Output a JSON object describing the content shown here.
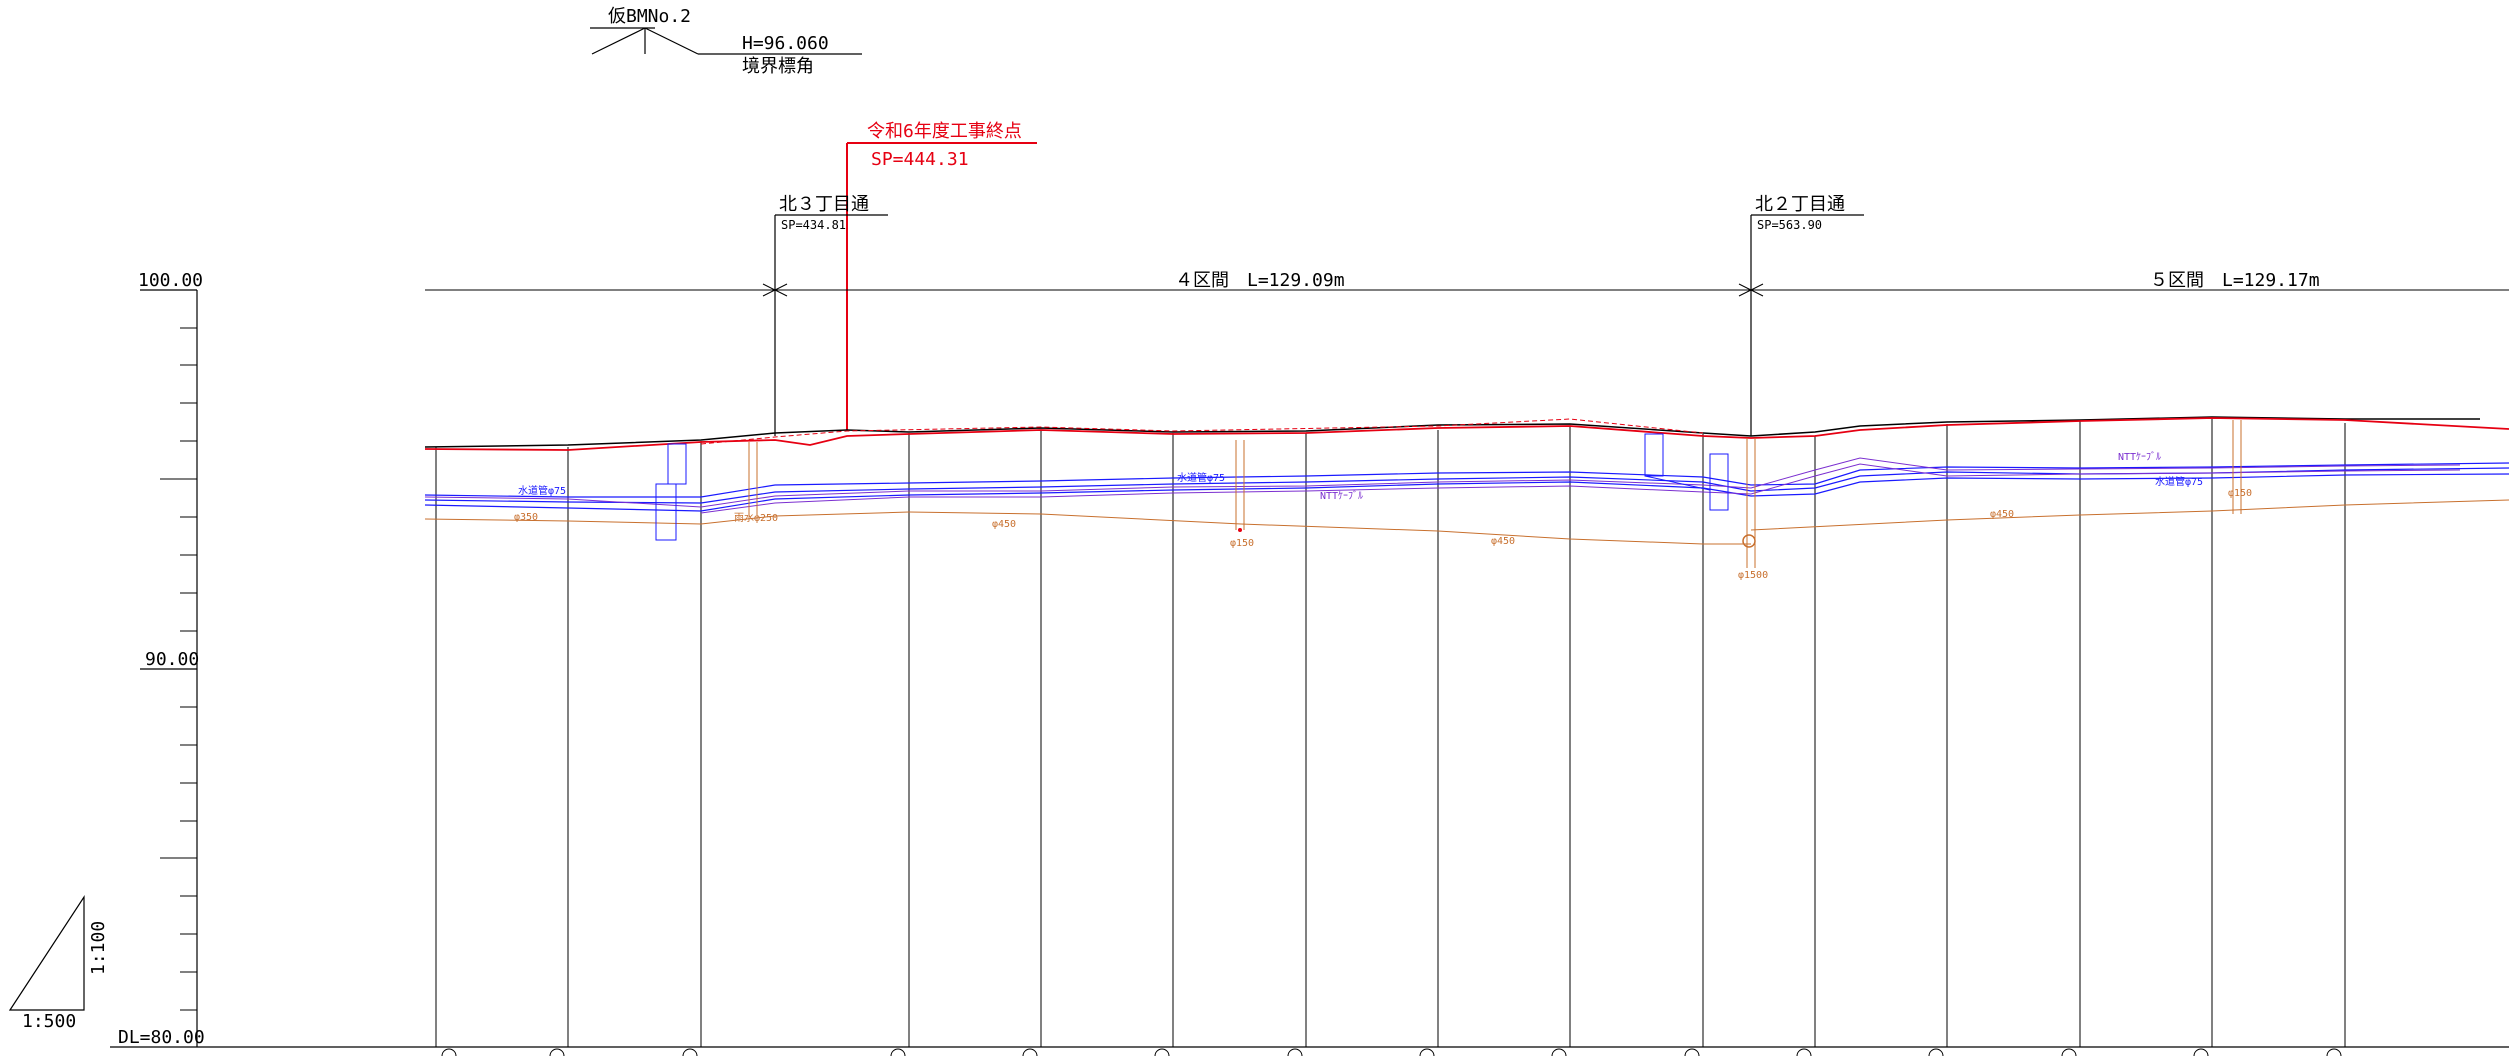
{
  "benchmark": {
    "title": "仮BMNo.2",
    "height": "H=96.060",
    "description": "境界標角"
  },
  "construction_end": {
    "label": "令和6年度工事終点",
    "sp": "SP=444.31"
  },
  "stations": [
    {
      "name": "北３丁目通",
      "sp": "SP=434.81"
    },
    {
      "name": "北２丁目通",
      "sp": "SP=563.90"
    }
  ],
  "sections": [
    {
      "label": "４区間　L=129.09m"
    },
    {
      "label": "５区間　L=129.17m"
    }
  ],
  "elevation_scale": {
    "top": "100.00",
    "mid": "90.00",
    "datum": "DL=80.00"
  },
  "scale_indicator": {
    "vertical": "1:100",
    "horizontal": "1:500"
  },
  "pipe_labels": {
    "water_left": "水道管φ75",
    "water_mid": "水道管φ75",
    "water_right": "水道管φ75",
    "ntt_mid": "NTTｹｰﾌﾞﾙ",
    "ntt_right": "NTTｹｰﾌﾞﾙ",
    "sewer_350": "φ350",
    "sewer_250": "雨水φ250",
    "sewer_450_a": "φ450",
    "sewer_150_a": "φ150",
    "sewer_450_b": "φ450",
    "sewer_1500": "φ1500",
    "sewer_450_c": "φ450",
    "sewer_150_b": "φ150"
  },
  "colors": {
    "ground_existing": "#000000",
    "ground_plan": "#e60012",
    "water_pipe": "#1a1aff",
    "ntt_cable": "#7b2fd0",
    "sewer_pipe": "#c8702e"
  }
}
